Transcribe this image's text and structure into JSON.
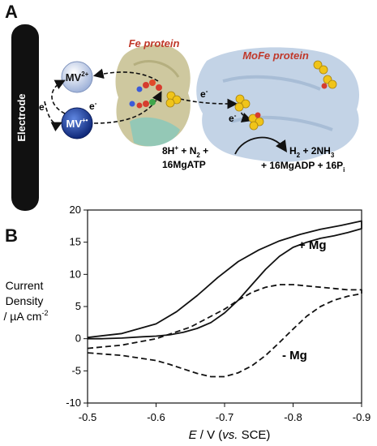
{
  "panel_a": {
    "letter": "A",
    "electrode_label": "Electrode",
    "fe_protein_label": "Fe protein",
    "mofe_protein_label": "MoFe protein",
    "mv2_base": "MV",
    "mv2_sup": "2+",
    "mv1_base": "MV",
    "mv1_sup": "+•",
    "electron": "e",
    "electron_sup": "-",
    "reactant_line1_a": "8H",
    "reactant_line1_b": " + N",
    "reactant_line1_c": " +",
    "reactant_line2": "16MgATP",
    "product_line1_a": "H",
    "product_line1_b": " + 2NH",
    "product_line2_a": "+ 16MgADP + 16P",
    "sub_2": "2",
    "sub_3": "3",
    "sub_i": "i",
    "sup_plus": "+"
  },
  "panel_b": {
    "letter": "B",
    "ylabel_lines": [
      "Current",
      "Density"
    ],
    "ylabel_unit_base": "/ µA cm",
    "ylabel_unit_sup": "-2",
    "xlabel_E": "E",
    "xlabel_mid": " / V (",
    "xlabel_vs": "vs.",
    "xlabel_end": " SCE)",
    "label_plus_mg": "+ Mg",
    "label_minus_mg": "- Mg"
  },
  "colors": {
    "electrode": "#111111",
    "mv2": "#c9d6ee",
    "mv1": "#1f3f9c",
    "fe_protein_text": "#c0392b",
    "mofe_protein_text": "#c0392b",
    "fe_protein_body": "#b9b27a",
    "mofe_protein_body": "#a9c1db",
    "cluster": "#f0c419"
  },
  "chart_data": {
    "type": "line",
    "xlabel": "E / V (vs. SCE)",
    "ylabel": "Current Density / µA cm-2",
    "xlim": [
      -0.5,
      -0.9
    ],
    "ylim": [
      -10,
      20
    ],
    "xticks": [
      -0.5,
      -0.6,
      -0.7,
      -0.8,
      -0.9
    ],
    "xtick_labels": [
      "-0.5",
      "-0.6",
      "-0.7",
      "-0.8",
      "-0.9"
    ],
    "yticks": [
      -10,
      -5,
      0,
      5,
      10,
      15,
      20
    ],
    "ytick_labels": [
      "-10",
      "-5",
      "0",
      "5",
      "10",
      "15",
      "20"
    ],
    "grid": false,
    "series": [
      {
        "name": "+ Mg",
        "style": "solid",
        "x": [
          -0.5,
          -0.55,
          -0.6,
          -0.63,
          -0.66,
          -0.69,
          -0.72,
          -0.75,
          -0.78,
          -0.81,
          -0.84,
          -0.87,
          -0.9,
          -0.9,
          -0.88,
          -0.86,
          -0.84,
          -0.82,
          -0.8,
          -0.78,
          -0.76,
          -0.74,
          -0.72,
          -0.7,
          -0.68,
          -0.66,
          -0.64,
          -0.62,
          -0.6,
          -0.58,
          -0.55,
          -0.52,
          -0.5
        ],
        "y": [
          0.2,
          0.8,
          2.3,
          4.2,
          6.7,
          9.5,
          12.0,
          13.8,
          15.2,
          16.2,
          17.0,
          17.6,
          18.3,
          17.1,
          16.5,
          16.0,
          15.6,
          15.0,
          14.2,
          12.8,
          10.8,
          8.4,
          6.0,
          4.0,
          2.5,
          1.6,
          1.0,
          0.6,
          0.4,
          0.3,
          0.1,
          0.0,
          0.0
        ]
      },
      {
        "name": "- Mg",
        "style": "dashed",
        "x": [
          -0.5,
          -0.55,
          -0.6,
          -0.65,
          -0.7,
          -0.72,
          -0.74,
          -0.76,
          -0.78,
          -0.8,
          -0.82,
          -0.84,
          -0.86,
          -0.88,
          -0.9,
          -0.9,
          -0.88,
          -0.86,
          -0.84,
          -0.82,
          -0.8,
          -0.78,
          -0.76,
          -0.74,
          -0.72,
          -0.7,
          -0.68,
          -0.66,
          -0.64,
          -0.62,
          -0.6,
          -0.55,
          -0.5
        ],
        "y": [
          -1.5,
          -1.0,
          0.0,
          1.8,
          4.6,
          6.0,
          7.2,
          8.0,
          8.4,
          8.4,
          8.2,
          8.0,
          7.8,
          7.6,
          7.6,
          7.0,
          6.6,
          6.0,
          5.0,
          3.5,
          1.5,
          -0.6,
          -2.6,
          -4.2,
          -5.3,
          -5.9,
          -5.9,
          -5.4,
          -4.7,
          -4.0,
          -3.4,
          -2.6,
          -2.2
        ]
      }
    ]
  }
}
